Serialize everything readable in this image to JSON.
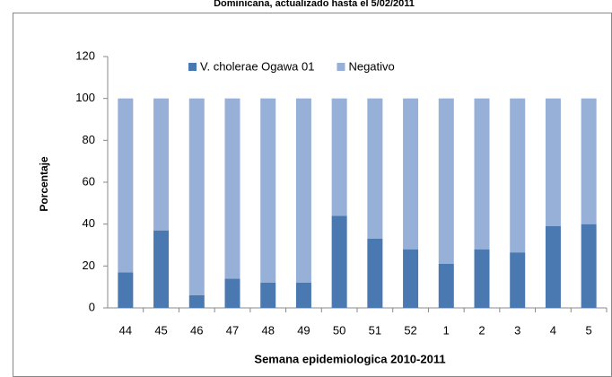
{
  "chart_data": {
    "type": "stacked_bar",
    "title": "Dominicana, actualizado hasta el 5/02/2011",
    "x_label": "Semana epidemiologica  2010-2011",
    "y_label": "Porcentaje",
    "categories": [
      "44",
      "45",
      "46",
      "47",
      "48",
      "49",
      "50",
      "51",
      "52",
      "1",
      "2",
      "3",
      "4",
      "5"
    ],
    "series": [
      {
        "name": "V. cholerae Ogawa 01",
        "color": "#4a78b0",
        "values": [
          17,
          37,
          6,
          14,
          12,
          12,
          44,
          33,
          28,
          21,
          28,
          26.5,
          39,
          40
        ]
      },
      {
        "name": "Negativo",
        "color": "#97b0d7",
        "values": [
          83,
          63,
          94,
          86,
          88,
          88,
          56,
          67,
          72,
          79,
          72,
          73.5,
          61,
          60
        ]
      }
    ],
    "ylim": [
      0,
      120
    ],
    "yticks": [
      0,
      20,
      40,
      60,
      80,
      100,
      120
    ],
    "legend": "top"
  }
}
